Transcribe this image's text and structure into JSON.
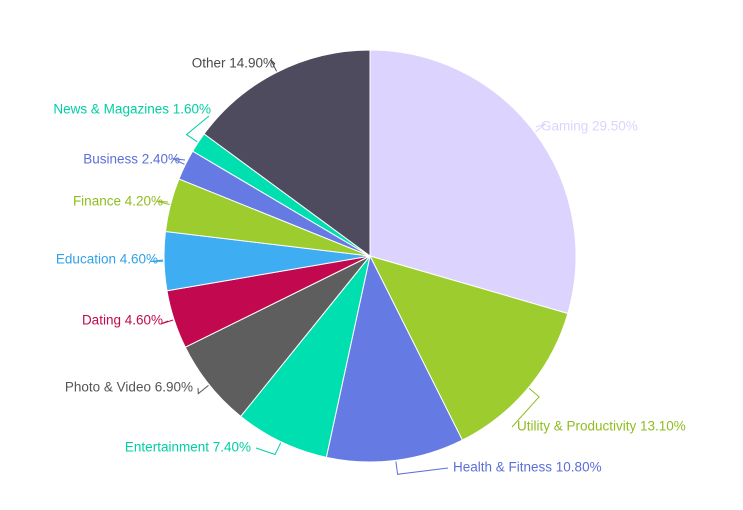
{
  "chart_data": {
    "type": "pie",
    "title": "",
    "slices": [
      {
        "label": "Gaming",
        "value": 29.5,
        "display": "Gaming 29.50%",
        "color": "#ddd3ff",
        "label_color": "#ddd3ff"
      },
      {
        "label": "Utility & Productivity",
        "value": 13.1,
        "display": "Utility & Productivity 13.10%",
        "color": "#9ccc2d",
        "label_color": "#8fbd1f"
      },
      {
        "label": "Health & Fitness",
        "value": 10.8,
        "display": "Health & Fitness 10.80%",
        "color": "#667ae3",
        "label_color": "#5b6fd8"
      },
      {
        "label": "Entertainment",
        "value": 7.4,
        "display": "Entertainment 7.40%",
        "color": "#00dfb0",
        "label_color": "#00cfa3"
      },
      {
        "label": "Photo & Video",
        "value": 6.9,
        "display": "Photo & Video 6.90%",
        "color": "#5e5e5e",
        "label_color": "#555555"
      },
      {
        "label": "Dating",
        "value": 4.6,
        "display": "Dating 4.60%",
        "color": "#c2094f",
        "label_color": "#c2094f"
      },
      {
        "label": "Education",
        "value": 4.6,
        "display": "Education 4.60%",
        "color": "#3eadf2",
        "label_color": "#2fa3ea"
      },
      {
        "label": "Finance",
        "value": 4.2,
        "display": "Finance 4.20%",
        "color": "#9ccc2d",
        "label_color": "#8fbd1f"
      },
      {
        "label": "Business",
        "value": 2.4,
        "display": "Business 2.40%",
        "color": "#667ae3",
        "label_color": "#5b6fd8"
      },
      {
        "label": "News & Magazines",
        "value": 1.6,
        "display": "News & Magazines 1.60%",
        "color": "#00dfb0",
        "label_color": "#00cfa3"
      },
      {
        "label": "Other",
        "value": 14.9,
        "display": "Other 14.90%",
        "color": "#4f4b5e",
        "label_color": "#4a4a4a"
      }
    ]
  }
}
